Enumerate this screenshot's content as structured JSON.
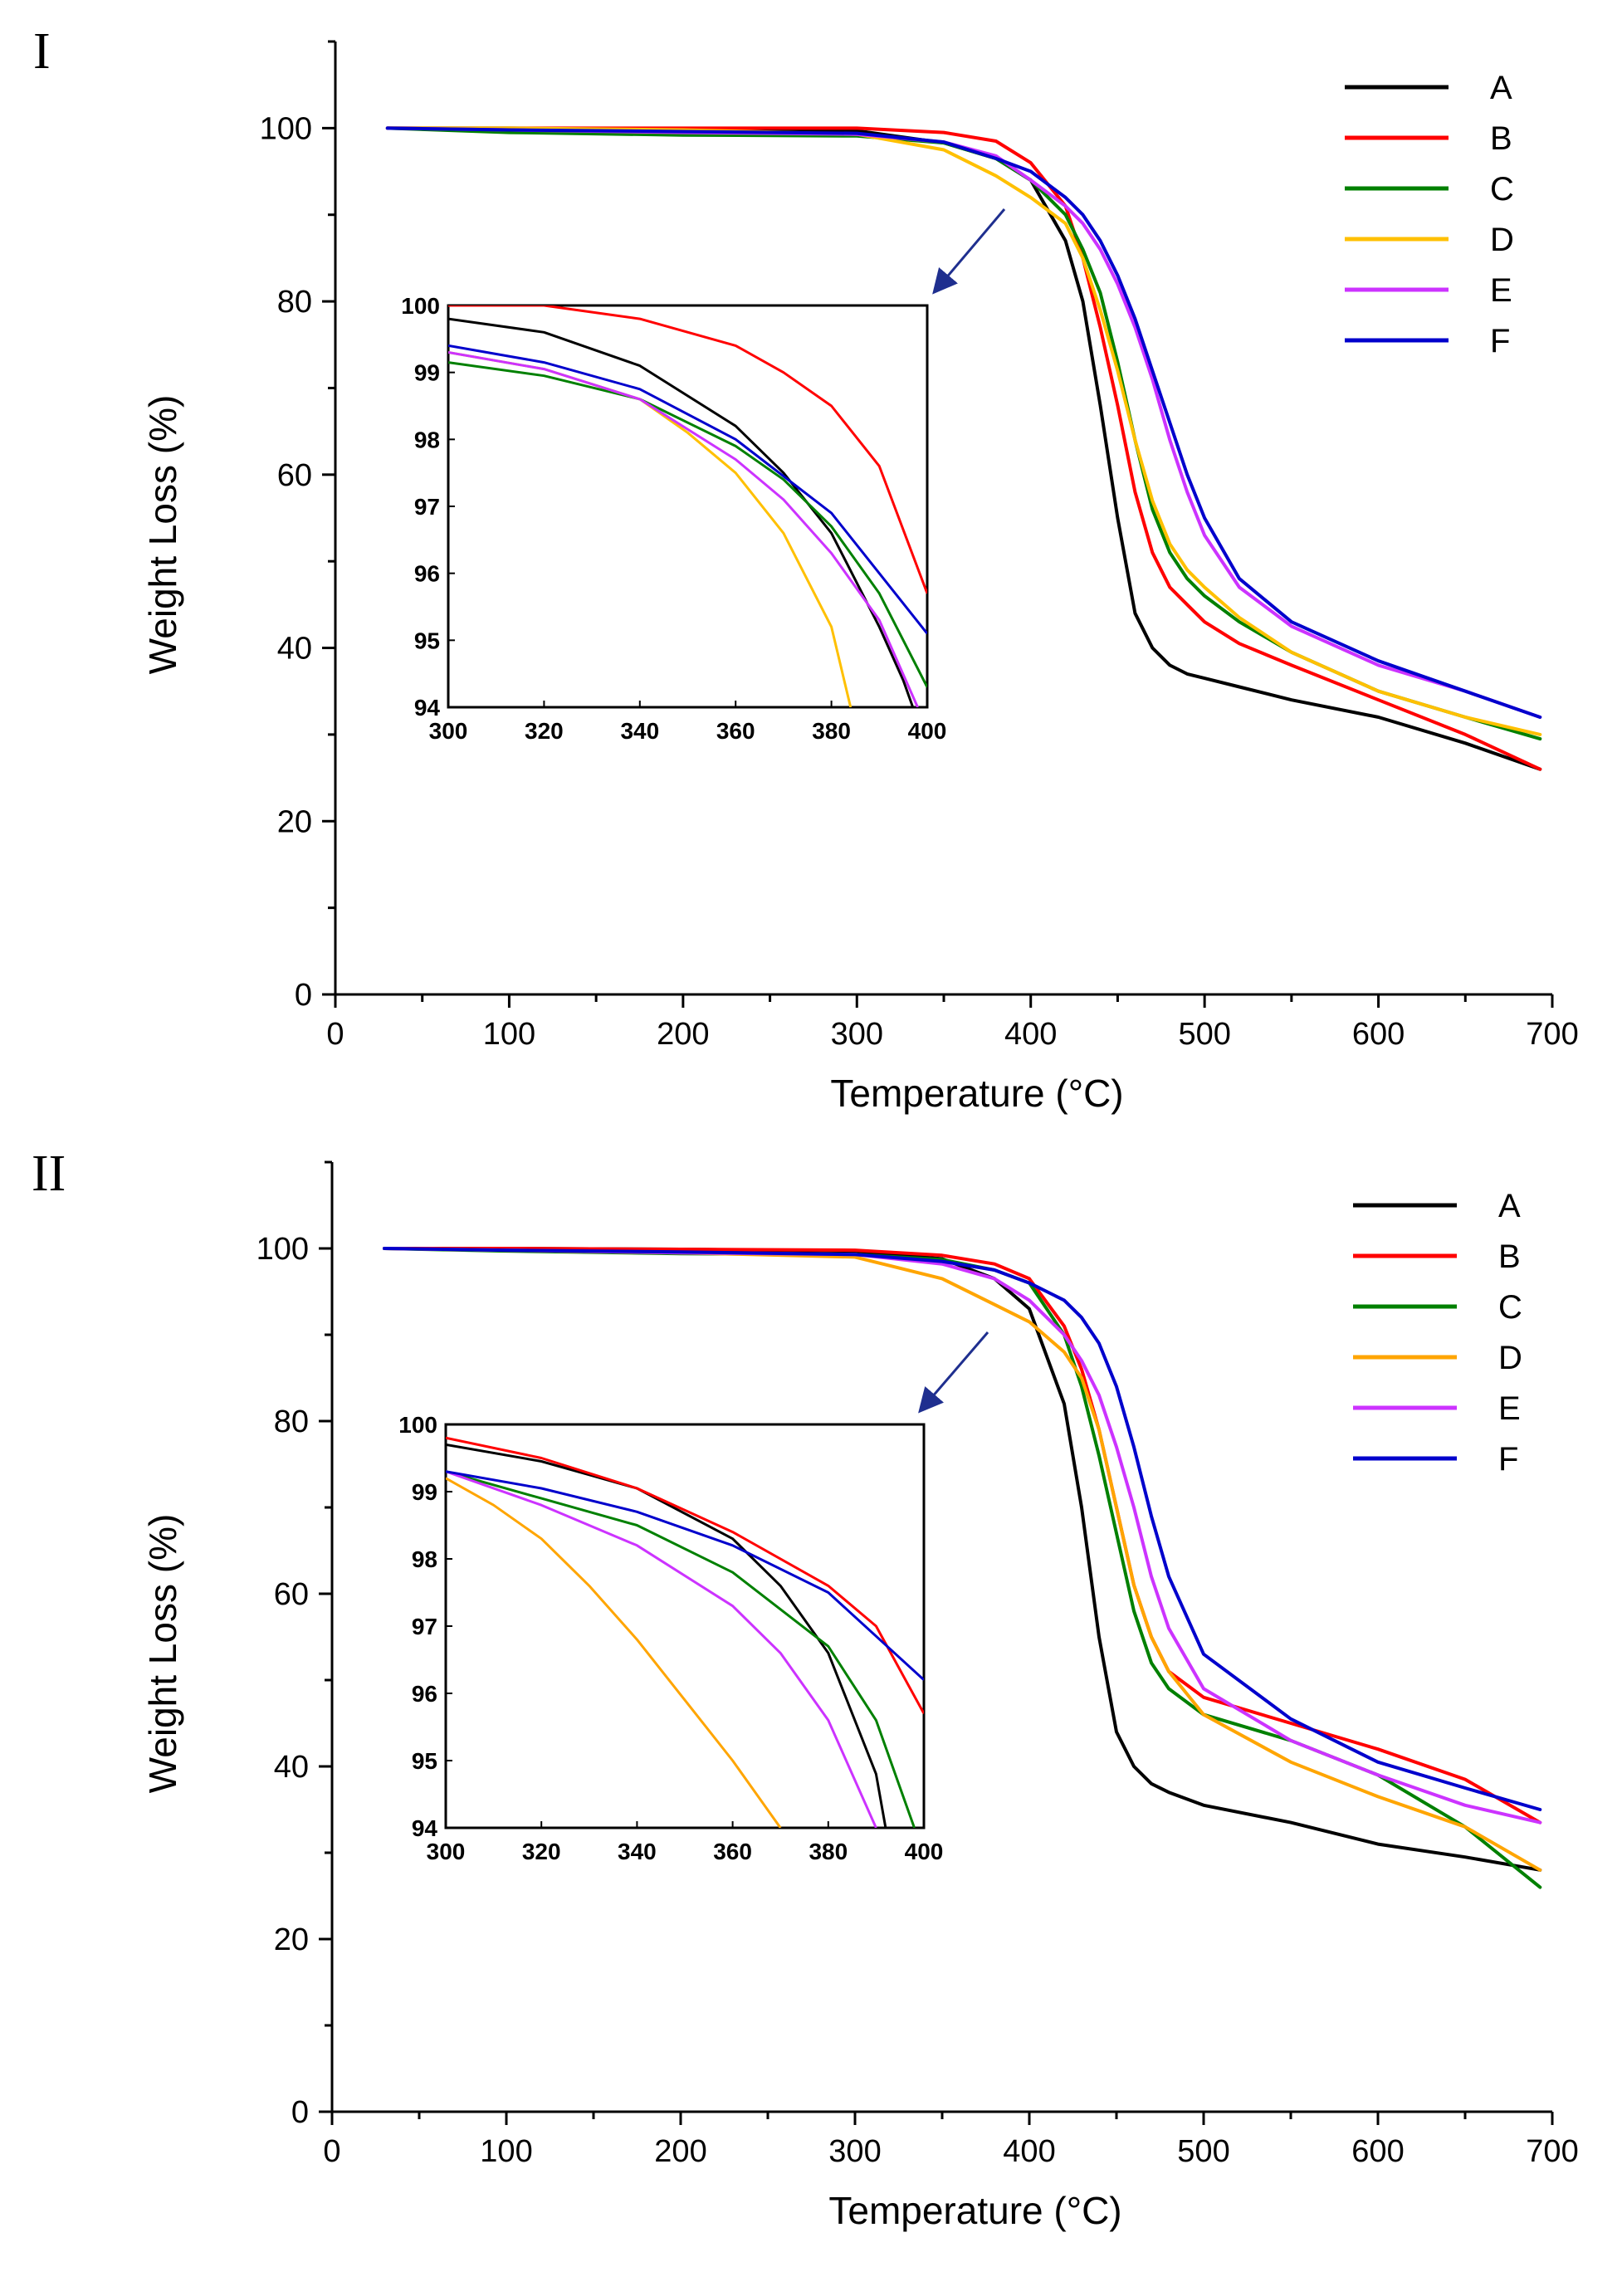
{
  "chart_data": [
    {
      "type": "line",
      "panel_label": "I",
      "xlabel": "Temperature (°C)",
      "ylabel": "Weight Loss (%)",
      "xlim": [
        0,
        700
      ],
      "ylim": [
        0,
        110
      ],
      "xticks": [
        0,
        100,
        200,
        300,
        400,
        500,
        600,
        700
      ],
      "yticks": [
        0,
        20,
        40,
        60,
        80,
        100
      ],
      "legend_position": "top-right",
      "series": [
        {
          "name": "A",
          "color": "#000000",
          "x": [
            30,
            100,
            200,
            300,
            350,
            380,
            400,
            420,
            430,
            440,
            450,
            460,
            470,
            480,
            490,
            500,
            520,
            550,
            600,
            650,
            693
          ],
          "y": [
            100,
            100,
            99.9,
            99.7,
            98.3,
            96.5,
            94,
            87,
            80,
            68,
            55,
            44,
            40,
            38,
            37,
            36.5,
            35.5,
            34,
            32,
            29,
            26
          ]
        },
        {
          "name": "B",
          "color": "#ff0000",
          "x": [
            30,
            100,
            200,
            300,
            350,
            380,
            400,
            420,
            430,
            440,
            450,
            460,
            470,
            480,
            490,
            500,
            520,
            550,
            600,
            650,
            693
          ],
          "y": [
            100,
            100,
            100,
            100,
            99.5,
            98.5,
            96,
            91,
            85,
            77,
            68,
            58,
            51,
            47,
            45,
            43,
            40.5,
            38,
            34,
            30,
            26
          ]
        },
        {
          "name": "C",
          "color": "#008000",
          "x": [
            30,
            100,
            200,
            300,
            350,
            380,
            400,
            420,
            430,
            440,
            450,
            460,
            470,
            480,
            490,
            500,
            520,
            550,
            600,
            650,
            693
          ],
          "y": [
            100,
            99.5,
            99.2,
            99.1,
            98.3,
            96.5,
            94,
            90,
            86,
            81,
            73,
            64,
            56,
            51,
            48,
            46,
            43,
            39.5,
            35,
            32,
            29.5
          ]
        },
        {
          "name": "D",
          "color": "#ffc000",
          "x": [
            30,
            100,
            200,
            300,
            350,
            380,
            400,
            420,
            430,
            440,
            450,
            460,
            470,
            480,
            490,
            500,
            520,
            550,
            600,
            650,
            693
          ],
          "y": [
            100,
            100,
            99.8,
            99.3,
            97.5,
            94.5,
            92,
            89,
            85,
            79,
            72,
            64,
            57,
            52,
            49,
            47,
            43.5,
            39.5,
            35,
            32,
            30
          ]
        },
        {
          "name": "E",
          "color": "#cc33ff",
          "x": [
            30,
            100,
            200,
            300,
            350,
            380,
            400,
            420,
            430,
            440,
            450,
            460,
            470,
            480,
            490,
            500,
            520,
            550,
            600,
            650,
            693
          ],
          "y": [
            100,
            99.8,
            99.5,
            99.3,
            98.4,
            96.8,
            94,
            91,
            89,
            86,
            82,
            77,
            71,
            64,
            58,
            53,
            47,
            42.5,
            38,
            35,
            32
          ]
        },
        {
          "name": "F",
          "color": "#0000cc",
          "x": [
            30,
            100,
            200,
            300,
            350,
            380,
            400,
            420,
            430,
            440,
            450,
            460,
            470,
            480,
            490,
            500,
            520,
            550,
            600,
            650,
            693
          ],
          "y": [
            100,
            99.8,
            99.6,
            99.4,
            98.4,
            96.5,
            95,
            92,
            90,
            87,
            83,
            78,
            72,
            66,
            60,
            55,
            48,
            43,
            38.5,
            35,
            32
          ]
        }
      ],
      "inset": {
        "xlim": [
          300,
          400
        ],
        "ylim": [
          94,
          100
        ],
        "xticks": [
          300,
          320,
          340,
          360,
          380,
          400
        ],
        "yticks": [
          94,
          95,
          96,
          97,
          98,
          99,
          100
        ],
        "series": [
          {
            "name": "A",
            "x": [
              300,
              320,
              340,
              360,
              370,
              380,
              390,
              395,
              397
            ],
            "y": [
              99.8,
              99.6,
              99.1,
              98.2,
              97.5,
              96.6,
              95.2,
              94.4,
              94
            ]
          },
          {
            "name": "B",
            "x": [
              300,
              320,
              340,
              360,
              370,
              380,
              390,
              400
            ],
            "y": [
              100,
              100,
              99.8,
              99.4,
              99,
              98.5,
              97.6,
              95.7
            ]
          },
          {
            "name": "C",
            "x": [
              300,
              320,
              340,
              360,
              370,
              380,
              390,
              400
            ],
            "y": [
              99.15,
              98.95,
              98.6,
              97.9,
              97.4,
              96.7,
              95.7,
              94.3
            ]
          },
          {
            "name": "D",
            "x": [
              300,
              320,
              340,
              350,
              360,
              370,
              380,
              384
            ],
            "y": [
              99.3,
              99.05,
              98.6,
              98.1,
              97.5,
              96.6,
              95.2,
              94
            ]
          },
          {
            "name": "E",
            "x": [
              300,
              320,
              340,
              360,
              370,
              380,
              390,
              398
            ],
            "y": [
              99.3,
              99.05,
              98.6,
              97.7,
              97.1,
              96.3,
              95.3,
              94
            ]
          },
          {
            "name": "F",
            "x": [
              300,
              320,
              340,
              360,
              380,
              400
            ],
            "y": [
              99.4,
              99.15,
              98.75,
              98,
              96.9,
              95.1
            ]
          }
        ]
      }
    },
    {
      "type": "line",
      "panel_label": "II",
      "xlabel": "Temperature (°C)",
      "ylabel": "Weight Loss (%)",
      "xlim": [
        0,
        700
      ],
      "ylim": [
        0,
        110
      ],
      "xticks": [
        0,
        100,
        200,
        300,
        400,
        500,
        600,
        700
      ],
      "yticks": [
        0,
        20,
        40,
        60,
        80,
        100
      ],
      "legend_position": "top-right",
      "series": [
        {
          "name": "A",
          "color": "#000000",
          "x": [
            30,
            100,
            200,
            300,
            350,
            380,
            400,
            420,
            430,
            440,
            450,
            460,
            470,
            480,
            500,
            550,
            600,
            650,
            693
          ],
          "y": [
            100,
            100,
            99.9,
            99.7,
            98.8,
            96.5,
            93,
            82,
            70,
            55,
            44,
            40,
            38,
            37,
            35.5,
            33.5,
            31,
            29.5,
            28
          ]
        },
        {
          "name": "B",
          "color": "#ff0000",
          "x": [
            30,
            100,
            200,
            300,
            350,
            380,
            400,
            420,
            430,
            440,
            450,
            460,
            470,
            480,
            500,
            550,
            600,
            650,
            693
          ],
          "y": [
            100,
            100,
            99.9,
            99.8,
            99.2,
            98.2,
            96.5,
            91,
            86,
            79,
            70,
            61,
            55,
            51,
            48,
            45,
            42,
            38.5,
            33.5
          ]
        },
        {
          "name": "C",
          "color": "#008000",
          "x": [
            30,
            100,
            200,
            300,
            350,
            380,
            400,
            420,
            430,
            440,
            450,
            460,
            470,
            480,
            500,
            550,
            600,
            650,
            693
          ],
          "y": [
            100,
            99.7,
            99.4,
            99.3,
            98.7,
            97.5,
            96,
            90,
            84,
            76,
            67,
            58,
            52,
            49,
            46,
            43,
            39,
            33,
            26
          ]
        },
        {
          "name": "D",
          "color": "#ffa500",
          "x": [
            30,
            100,
            200,
            300,
            350,
            380,
            400,
            420,
            430,
            440,
            450,
            460,
            470,
            480,
            500,
            550,
            600,
            650,
            693
          ],
          "y": [
            100,
            99.8,
            99.5,
            99,
            96.5,
            93.5,
            91.5,
            88,
            85,
            79,
            70,
            61,
            55,
            51,
            46,
            40.5,
            36.5,
            33,
            28
          ]
        },
        {
          "name": "E",
          "color": "#cc33ff",
          "x": [
            30,
            100,
            200,
            300,
            350,
            380,
            400,
            420,
            430,
            440,
            450,
            460,
            470,
            480,
            500,
            550,
            600,
            650,
            693
          ],
          "y": [
            100,
            99.8,
            99.5,
            99.3,
            98.2,
            96.5,
            94,
            90,
            87,
            83,
            77,
            70,
            62,
            56,
            49,
            43,
            39,
            35.5,
            33.5
          ]
        },
        {
          "name": "F",
          "color": "#0000cc",
          "x": [
            30,
            100,
            200,
            300,
            350,
            380,
            400,
            420,
            430,
            440,
            450,
            460,
            470,
            480,
            500,
            550,
            600,
            650,
            693
          ],
          "y": [
            100,
            99.8,
            99.6,
            99.3,
            98.5,
            97.5,
            96,
            94,
            92,
            89,
            84,
            77,
            69,
            62,
            53,
            45.5,
            40.5,
            37.5,
            35
          ]
        }
      ],
      "inset": {
        "xlim": [
          300,
          400
        ],
        "ylim": [
          94,
          100
        ],
        "xticks": [
          300,
          320,
          340,
          360,
          380,
          400
        ],
        "yticks": [
          94,
          95,
          96,
          97,
          98,
          99,
          100
        ],
        "series": [
          {
            "name": "A",
            "x": [
              300,
              320,
              340,
              360,
              370,
              380,
              390,
              392
            ],
            "y": [
              99.7,
              99.45,
              99.05,
              98.3,
              97.6,
              96.6,
              94.8,
              94
            ]
          },
          {
            "name": "B",
            "x": [
              300,
              320,
              340,
              360,
              380,
              390,
              400
            ],
            "y": [
              99.8,
              99.5,
              99.05,
              98.4,
              97.6,
              97,
              95.7
            ]
          },
          {
            "name": "C",
            "x": [
              300,
              320,
              340,
              360,
              380,
              390,
              398
            ],
            "y": [
              99.3,
              98.9,
              98.5,
              97.8,
              96.7,
              95.6,
              94
            ]
          },
          {
            "name": "D",
            "x": [
              300,
              310,
              320,
              330,
              340,
              350,
              360,
              370
            ],
            "y": [
              99.2,
              98.8,
              98.3,
              97.6,
              96.8,
              95.9,
              95,
              94
            ]
          },
          {
            "name": "E",
            "x": [
              300,
              320,
              340,
              360,
              370,
              380,
              390
            ],
            "y": [
              99.3,
              98.8,
              98.2,
              97.3,
              96.6,
              95.6,
              94
            ]
          },
          {
            "name": "F",
            "x": [
              300,
              320,
              340,
              360,
              380,
              400
            ],
            "y": [
              99.3,
              99.05,
              98.7,
              98.2,
              97.5,
              96.2
            ]
          }
        ]
      }
    }
  ]
}
